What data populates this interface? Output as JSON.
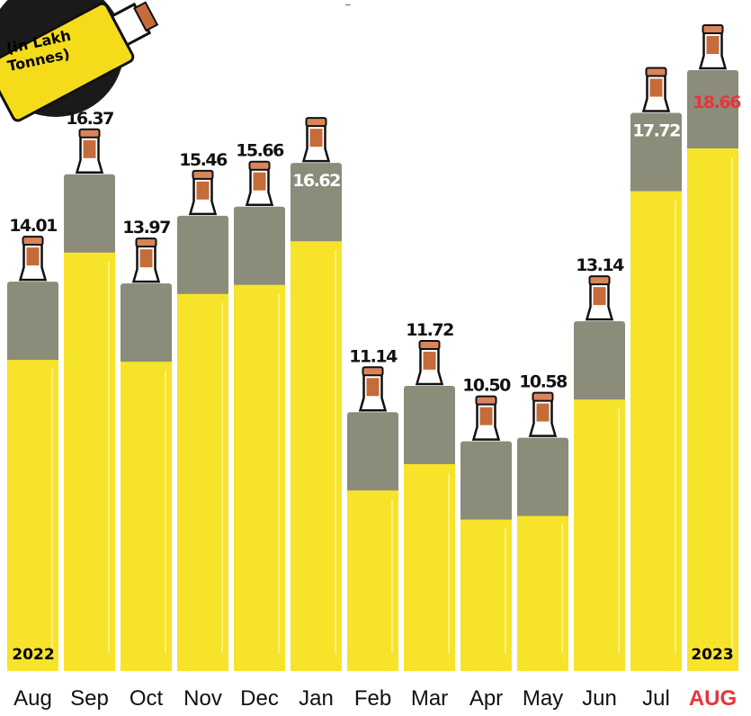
{
  "chart_data": {
    "type": "bar",
    "unit_label": "(in Lakh Tonnes)",
    "unit_lines": [
      "(in Lakh",
      "Tonnes)"
    ],
    "categories": [
      "Aug",
      "Sep",
      "Oct",
      "Nov",
      "Dec",
      "Jan",
      "Feb",
      "Mar",
      "Apr",
      "May",
      "Jun",
      "Jul",
      "AUG"
    ],
    "values": [
      14.01,
      16.37,
      13.97,
      15.46,
      15.66,
      16.62,
      11.14,
      11.72,
      10.5,
      10.58,
      13.14,
      17.72,
      18.66
    ],
    "labels": [
      "14.01",
      "16.37",
      "13.97",
      "15.46",
      "15.66",
      "16.62",
      "11.14",
      "11.72",
      "10.50",
      "10.58",
      "13.14",
      "17.72",
      "18.66"
    ],
    "year_start": "2022",
    "year_end": "2023",
    "highlight_index": 12,
    "ylim": [
      5.45,
      18.66
    ],
    "grid": false,
    "legend": "none",
    "colors": {
      "oil": "#f7e42a",
      "oil_top": "#8c8c7b",
      "highlight": "#e8343a",
      "bottle_dark": "#111111",
      "badge_bg": "#f5dc1a",
      "badge_ring": "#1a1a1a",
      "text": "#111111"
    }
  }
}
